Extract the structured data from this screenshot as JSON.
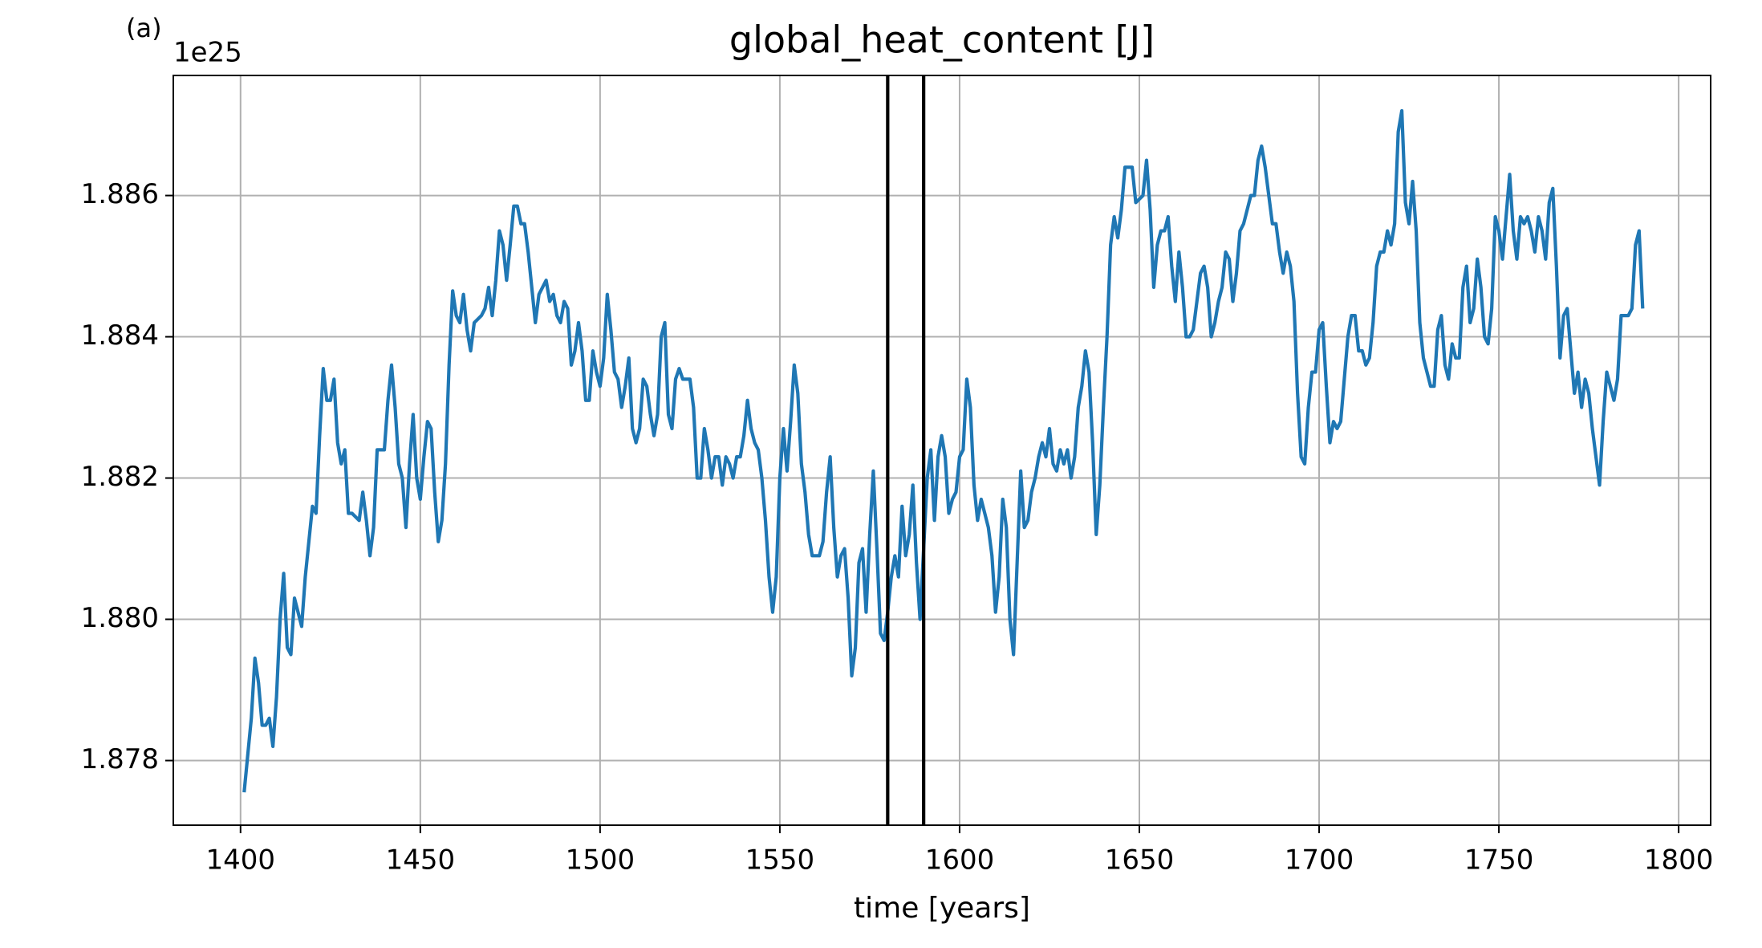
{
  "chart_data": {
    "type": "line",
    "title": "global_heat_content [J]",
    "annotation": "(a)",
    "offset_label": "1e25",
    "xlabel": "time [years]",
    "color": "#1f77b4",
    "vline_color": "#000000",
    "grid": true,
    "xlim": [
      1381.3,
      1808.9
    ],
    "ylim": [
      1.877085,
      1.8877
    ],
    "xticks": [
      1400,
      1450,
      1500,
      1550,
      1600,
      1650,
      1700,
      1750,
      1800
    ],
    "yticks": [
      1.878,
      {
        "value": 1.88,
        "label": "1.880"
      },
      1.882,
      1.884,
      1.886
    ],
    "vlines": [
      1580,
      1590
    ],
    "x": [
      1401,
      1403,
      1404,
      1405,
      1406,
      1407,
      1408,
      1409,
      1410,
      1411,
      1412,
      1413,
      1414,
      1415,
      1417,
      1418,
      1420,
      1421,
      1422,
      1423,
      1424,
      1425,
      1426,
      1427,
      1428,
      1429,
      1430,
      1431,
      1433,
      1434,
      1435,
      1436,
      1437,
      1438,
      1440,
      1441,
      1442,
      1443,
      1444,
      1445,
      1446,
      1447,
      1448,
      1449,
      1450,
      1451,
      1452,
      1453,
      1454,
      1455,
      1456,
      1457,
      1458,
      1459,
      1460,
      1461,
      1462,
      1463,
      1464,
      1465,
      1467,
      1468,
      1469,
      1470,
      1471,
      1472,
      1473,
      1474,
      1475,
      1476,
      1477,
      1478,
      1479,
      1480,
      1481,
      1482,
      1483,
      1485,
      1486,
      1487,
      1488,
      1489,
      1490,
      1491,
      1492,
      1493,
      1494,
      1495,
      1496,
      1497,
      1498,
      1499,
      1500,
      1501,
      1502,
      1503,
      1504,
      1505,
      1506,
      1507,
      1508,
      1509,
      1510,
      1511,
      1512,
      1513,
      1514,
      1515,
      1516,
      1517,
      1518,
      1519,
      1520,
      1521,
      1522,
      1523,
      1525,
      1526,
      1527,
      1528,
      1529,
      1530,
      1531,
      1532,
      1533,
      1534,
      1535,
      1536,
      1537,
      1538,
      1539,
      1540,
      1541,
      1542,
      1543,
      1544,
      1545,
      1546,
      1547,
      1548,
      1549,
      1550,
      1551,
      1552,
      1553,
      1554,
      1555,
      1556,
      1557,
      1558,
      1559,
      1560,
      1561,
      1562,
      1563,
      1564,
      1565,
      1566,
      1567,
      1568,
      1569,
      1570,
      1571,
      1572,
      1573,
      1574,
      1575,
      1576,
      1577,
      1578,
      1579,
      1580,
      1581,
      1582,
      1583,
      1584,
      1585,
      1586,
      1587,
      1588,
      1589,
      1590,
      1591,
      1592,
      1593,
      1594,
      1595,
      1596,
      1597,
      1598,
      1599,
      1600,
      1601,
      1602,
      1603,
      1604,
      1605,
      1606,
      1607,
      1608,
      1609,
      1610,
      1611,
      1612,
      1613,
      1614,
      1615,
      1616,
      1617,
      1618,
      1619,
      1620,
      1621,
      1622,
      1623,
      1624,
      1625,
      1626,
      1627,
      1628,
      1629,
      1630,
      1631,
      1632,
      1633,
      1634,
      1635,
      1636,
      1637,
      1638,
      1639,
      1640,
      1641,
      1642,
      1643,
      1644,
      1645,
      1646,
      1647,
      1648,
      1649,
      1651,
      1652,
      1653,
      1654,
      1655,
      1656,
      1657,
      1658,
      1659,
      1660,
      1661,
      1662,
      1663,
      1664,
      1665,
      1666,
      1667,
      1668,
      1669,
      1670,
      1671,
      1672,
      1673,
      1674,
      1675,
      1676,
      1677,
      1678,
      1679,
      1680,
      1681,
      1682,
      1683,
      1684,
      1685,
      1686,
      1687,
      1688,
      1689,
      1690,
      1691,
      1692,
      1693,
      1694,
      1695,
      1696,
      1697,
      1698,
      1699,
      1700,
      1701,
      1702,
      1703,
      1704,
      1705,
      1706,
      1707,
      1708,
      1709,
      1710,
      1711,
      1712,
      1713,
      1714,
      1715,
      1716,
      1717,
      1718,
      1719,
      1720,
      1721,
      1722,
      1723,
      1724,
      1725,
      1726,
      1727,
      1728,
      1729,
      1730,
      1731,
      1732,
      1733,
      1734,
      1735,
      1736,
      1737,
      1738,
      1739,
      1740,
      1741,
      1742,
      1743,
      1744,
      1745,
      1746,
      1747,
      1748,
      1749,
      1750,
      1751,
      1752,
      1753,
      1754,
      1755,
      1756,
      1757,
      1758,
      1759,
      1760,
      1761,
      1762,
      1763,
      1764,
      1765,
      1766,
      1767,
      1768,
      1769,
      1770,
      1771,
      1772,
      1773,
      1774,
      1775,
      1776,
      1777,
      1778,
      1779,
      1780,
      1781,
      1782,
      1783,
      1784,
      1785,
      1786,
      1787,
      1788,
      1789,
      1790
    ],
    "values": [
      1.87755,
      1.8786,
      1.87945,
      1.8791,
      1.8785,
      1.8785,
      1.8786,
      1.8782,
      1.8789,
      1.88,
      1.88065,
      1.8796,
      1.8795,
      1.8803,
      1.8799,
      1.8806,
      1.8816,
      1.8815,
      1.8826,
      1.88355,
      1.8831,
      1.8831,
      1.8834,
      1.8825,
      1.8822,
      1.8824,
      1.8815,
      1.8815,
      1.8814,
      1.8818,
      1.8814,
      1.8809,
      1.8813,
      1.8824,
      1.8824,
      1.8831,
      1.8836,
      1.883,
      1.8822,
      1.882,
      1.8813,
      1.8822,
      1.8829,
      1.882,
      1.8817,
      1.8823,
      1.8828,
      1.8827,
      1.8818,
      1.8811,
      1.8814,
      1.8822,
      1.8836,
      1.88465,
      1.8843,
      1.8842,
      1.8846,
      1.8841,
      1.8838,
      1.8842,
      1.8843,
      1.8844,
      1.8847,
      1.8843,
      1.8848,
      1.8855,
      1.8853,
      1.8848,
      1.8853,
      1.88585,
      1.88585,
      1.8856,
      1.8856,
      1.8852,
      1.8847,
      1.8842,
      1.8846,
      1.8848,
      1.8845,
      1.8846,
      1.8843,
      1.8842,
      1.8845,
      1.8844,
      1.8836,
      1.8838,
      1.8842,
      1.8838,
      1.8831,
      1.8831,
      1.8838,
      1.8835,
      1.8833,
      1.8837,
      1.8846,
      1.8841,
      1.8835,
      1.8834,
      1.883,
      1.8833,
      1.8837,
      1.8827,
      1.8825,
      1.8827,
      1.8834,
      1.8833,
      1.8829,
      1.8826,
      1.8829,
      1.884,
      1.8842,
      1.8829,
      1.8827,
      1.8834,
      1.88355,
      1.8834,
      1.8834,
      1.883,
      1.882,
      1.882,
      1.8827,
      1.8824,
      1.882,
      1.8823,
      1.8823,
      1.8819,
      1.8823,
      1.8822,
      1.882,
      1.8823,
      1.8823,
      1.8826,
      1.8831,
      1.8827,
      1.8825,
      1.8824,
      1.882,
      1.8814,
      1.8806,
      1.8801,
      1.8806,
      1.882,
      1.8827,
      1.8821,
      1.8828,
      1.8836,
      1.8832,
      1.8822,
      1.8818,
      1.8812,
      1.8809,
      1.8809,
      1.8809,
      1.8811,
      1.8818,
      1.8823,
      1.8813,
      1.8806,
      1.8809,
      1.881,
      1.8803,
      1.8792,
      1.8796,
      1.8808,
      1.881,
      1.8801,
      1.8812,
      1.8821,
      1.881,
      1.8798,
      1.8797,
      1.8801,
      1.8806,
      1.8809,
      1.8806,
      1.8816,
      1.8809,
      1.8812,
      1.8819,
      1.8808,
      1.88,
      1.881,
      1.882,
      1.8824,
      1.8814,
      1.8823,
      1.8826,
      1.8823,
      1.8815,
      1.8817,
      1.8818,
      1.8823,
      1.8824,
      1.8834,
      1.883,
      1.8819,
      1.8814,
      1.8817,
      1.8815,
      1.8813,
      1.8809,
      1.8801,
      1.8806,
      1.8817,
      1.8813,
      1.88,
      1.8795,
      1.8808,
      1.8821,
      1.8813,
      1.8814,
      1.8818,
      1.882,
      1.8823,
      1.8825,
      1.8823,
      1.8827,
      1.8822,
      1.8821,
      1.8824,
      1.8822,
      1.8824,
      1.882,
      1.8823,
      1.883,
      1.8833,
      1.8838,
      1.8835,
      1.8825,
      1.8812,
      1.8819,
      1.883,
      1.884,
      1.8853,
      1.8857,
      1.8854,
      1.8858,
      1.8864,
      1.8864,
      1.8864,
      1.8859,
      1.886,
      1.8865,
      1.8858,
      1.8847,
      1.8853,
      1.8855,
      1.8855,
      1.8857,
      1.885,
      1.8845,
      1.8852,
      1.8847,
      1.884,
      1.884,
      1.8841,
      1.8845,
      1.8849,
      1.885,
      1.8847,
      1.884,
      1.8842,
      1.8845,
      1.8847,
      1.8852,
      1.8851,
      1.8845,
      1.8849,
      1.8855,
      1.8856,
      1.8858,
      1.886,
      1.886,
      1.8865,
      1.8867,
      1.8864,
      1.886,
      1.8856,
      1.8856,
      1.8852,
      1.8849,
      1.8852,
      1.885,
      1.8845,
      1.8832,
      1.8823,
      1.8822,
      1.883,
      1.8835,
      1.8835,
      1.8841,
      1.8842,
      1.8833,
      1.8825,
      1.8828,
      1.8827,
      1.8828,
      1.8834,
      1.884,
      1.8843,
      1.8843,
      1.8838,
      1.8838,
      1.8836,
      1.8837,
      1.8842,
      1.885,
      1.8852,
      1.8852,
      1.8855,
      1.8853,
      1.8856,
      1.8869,
      1.8872,
      1.8859,
      1.8856,
      1.8862,
      1.8855,
      1.8842,
      1.8837,
      1.8835,
      1.8833,
      1.8833,
      1.8841,
      1.8843,
      1.8836,
      1.8834,
      1.8839,
      1.8837,
      1.8837,
      1.8847,
      1.885,
      1.8842,
      1.8844,
      1.8851,
      1.8847,
      1.884,
      1.8839,
      1.8844,
      1.8857,
      1.8855,
      1.8851,
      1.8857,
      1.8863,
      1.8855,
      1.8851,
      1.8857,
      1.8856,
      1.8857,
      1.8855,
      1.8852,
      1.8857,
      1.8855,
      1.8851,
      1.8859,
      1.8861,
      1.885,
      1.8837,
      1.8843,
      1.8844,
      1.8838,
      1.8832,
      1.8835,
      1.883,
      1.8834,
      1.8832,
      1.8827,
      1.8823,
      1.8819,
      1.8828,
      1.8835,
      1.8833,
      1.8831,
      1.8834,
      1.8843,
      1.8843,
      1.8843,
      1.8844,
      1.8853,
      1.8855,
      1.8844
    ]
  }
}
